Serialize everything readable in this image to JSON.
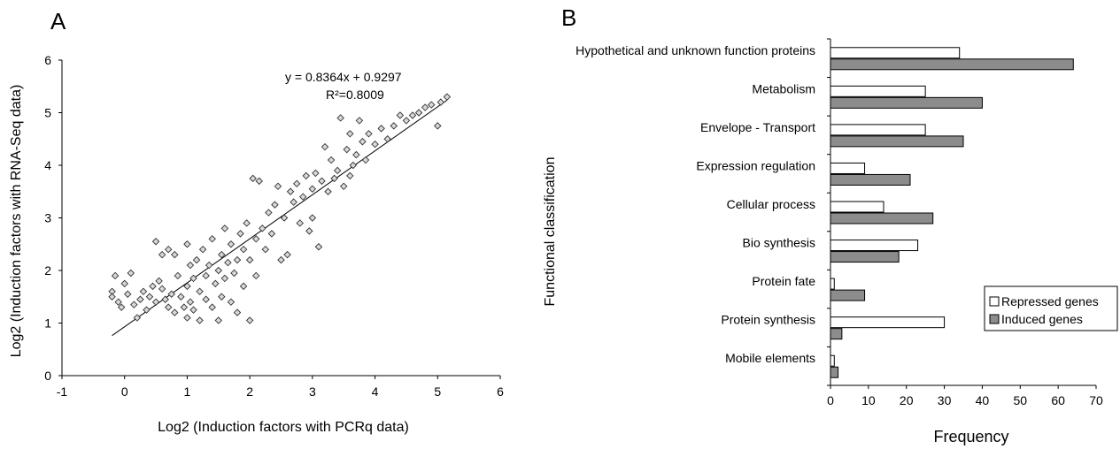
{
  "panel_a": {
    "letter": "A"
  },
  "panel_b": {
    "letter": "B"
  },
  "chart_data": [
    {
      "type": "scatter",
      "xlabel": "Log2 (Induction factors with PCRq data)",
      "ylabel": "Log2 (Induction factors with RNA-Seq data)",
      "xlim": [
        -1,
        6
      ],
      "ylim": [
        0,
        6
      ],
      "xticks": [
        "-1",
        "0",
        "1",
        "2",
        "3",
        "4",
        "5",
        "6"
      ],
      "yticks": [
        "0",
        "1",
        "2",
        "3",
        "4",
        "5",
        "6"
      ],
      "equation": "y = 0.8364x + 0.9297",
      "r2_label": "R²=0.8009",
      "trendline": {
        "slope": 0.8364,
        "intercept": 0.9297,
        "x_range": [
          -0.2,
          5.15
        ]
      },
      "points": [
        [
          -0.2,
          1.6
        ],
        [
          -0.2,
          1.5
        ],
        [
          -0.15,
          1.9
        ],
        [
          -0.1,
          1.4
        ],
        [
          -0.05,
          1.3
        ],
        [
          0,
          1.75
        ],
        [
          0.05,
          1.55
        ],
        [
          0.1,
          1.95
        ],
        [
          0.15,
          1.35
        ],
        [
          0.2,
          1.1
        ],
        [
          0.25,
          1.45
        ],
        [
          0.3,
          1.6
        ],
        [
          0.35,
          1.25
        ],
        [
          0.4,
          1.5
        ],
        [
          0.45,
          1.7
        ],
        [
          0.5,
          2.55
        ],
        [
          0.5,
          1.4
        ],
        [
          0.55,
          1.8
        ],
        [
          0.6,
          1.65
        ],
        [
          0.6,
          2.3
        ],
        [
          0.65,
          1.45
        ],
        [
          0.7,
          1.3
        ],
        [
          0.7,
          2.4
        ],
        [
          0.75,
          1.55
        ],
        [
          0.8,
          2.3
        ],
        [
          0.8,
          1.2
        ],
        [
          0.85,
          1.9
        ],
        [
          0.9,
          1.5
        ],
        [
          0.95,
          1.3
        ],
        [
          1.0,
          2.5
        ],
        [
          1.0,
          1.7
        ],
        [
          1.0,
          1.1
        ],
        [
          1.05,
          2.1
        ],
        [
          1.05,
          1.4
        ],
        [
          1.1,
          1.85
        ],
        [
          1.1,
          1.25
        ],
        [
          1.15,
          2.2
        ],
        [
          1.2,
          1.6
        ],
        [
          1.2,
          1.05
        ],
        [
          1.25,
          2.4
        ],
        [
          1.3,
          1.9
        ],
        [
          1.3,
          1.45
        ],
        [
          1.35,
          2.1
        ],
        [
          1.4,
          1.3
        ],
        [
          1.4,
          2.6
        ],
        [
          1.45,
          1.75
        ],
        [
          1.5,
          2.0
        ],
        [
          1.5,
          1.05
        ],
        [
          1.55,
          2.3
        ],
        [
          1.55,
          1.5
        ],
        [
          1.6,
          2.8
        ],
        [
          1.6,
          1.85
        ],
        [
          1.65,
          2.15
        ],
        [
          1.7,
          1.4
        ],
        [
          1.7,
          2.5
        ],
        [
          1.75,
          1.95
        ],
        [
          1.8,
          2.2
        ],
        [
          1.8,
          1.2
        ],
        [
          1.85,
          2.7
        ],
        [
          1.9,
          2.4
        ],
        [
          1.9,
          1.7
        ],
        [
          1.95,
          2.9
        ],
        [
          2.0,
          2.2
        ],
        [
          2.0,
          1.05
        ],
        [
          2.05,
          3.75
        ],
        [
          2.1,
          2.6
        ],
        [
          2.1,
          1.9
        ],
        [
          2.15,
          3.7
        ],
        [
          2.2,
          2.8
        ],
        [
          2.25,
          2.4
        ],
        [
          2.3,
          3.1
        ],
        [
          2.35,
          2.7
        ],
        [
          2.4,
          3.25
        ],
        [
          2.45,
          3.6
        ],
        [
          2.5,
          2.2
        ],
        [
          2.55,
          3.0
        ],
        [
          2.6,
          2.3
        ],
        [
          2.65,
          3.5
        ],
        [
          2.7,
          3.3
        ],
        [
          2.75,
          3.65
        ],
        [
          2.8,
          2.9
        ],
        [
          2.85,
          3.4
        ],
        [
          2.9,
          3.8
        ],
        [
          2.95,
          2.75
        ],
        [
          3.0,
          3.55
        ],
        [
          3.0,
          3.0
        ],
        [
          3.05,
          3.85
        ],
        [
          3.1,
          2.45
        ],
        [
          3.15,
          3.7
        ],
        [
          3.2,
          4.35
        ],
        [
          3.25,
          3.5
        ],
        [
          3.3,
          4.1
        ],
        [
          3.35,
          3.75
        ],
        [
          3.4,
          3.9
        ],
        [
          3.45,
          4.9
        ],
        [
          3.5,
          3.6
        ],
        [
          3.55,
          4.3
        ],
        [
          3.6,
          3.8
        ],
        [
          3.6,
          4.6
        ],
        [
          3.65,
          4.0
        ],
        [
          3.7,
          4.2
        ],
        [
          3.75,
          4.85
        ],
        [
          3.8,
          4.45
        ],
        [
          3.85,
          4.1
        ],
        [
          3.9,
          4.6
        ],
        [
          4.0,
          4.4
        ],
        [
          4.1,
          4.7
        ],
        [
          4.2,
          4.5
        ],
        [
          4.3,
          4.75
        ],
        [
          4.4,
          4.95
        ],
        [
          4.5,
          4.85
        ],
        [
          4.6,
          4.95
        ],
        [
          4.7,
          5.0
        ],
        [
          4.8,
          5.1
        ],
        [
          4.9,
          5.15
        ],
        [
          5.0,
          4.75
        ],
        [
          5.05,
          5.2
        ],
        [
          5.15,
          5.3
        ]
      ]
    },
    {
      "type": "bar",
      "orientation": "horizontal",
      "ylabel": "Functional classification",
      "xlabel": "Frequency",
      "xlim": [
        0,
        70
      ],
      "xticks": [
        "0",
        "10",
        "20",
        "30",
        "40",
        "50",
        "60",
        "70"
      ],
      "categories": [
        "Hypothetical and unknown function proteins",
        "Metabolism",
        "Envelope - Transport",
        "Expression regulation",
        "Cellular process",
        "Bio synthesis",
        "Protein fate",
        "Protein synthesis",
        "Mobile elements"
      ],
      "series": [
        {
          "name": "Repressed genes",
          "color": "#ffffff",
          "values": [
            34,
            25,
            25,
            9,
            14,
            23,
            1,
            30,
            1
          ]
        },
        {
          "name": "Induced genes",
          "color": "#8c8c8c",
          "values": [
            64,
            40,
            35,
            21,
            27,
            18,
            9,
            3,
            2
          ]
        }
      ],
      "legend": "right"
    }
  ]
}
